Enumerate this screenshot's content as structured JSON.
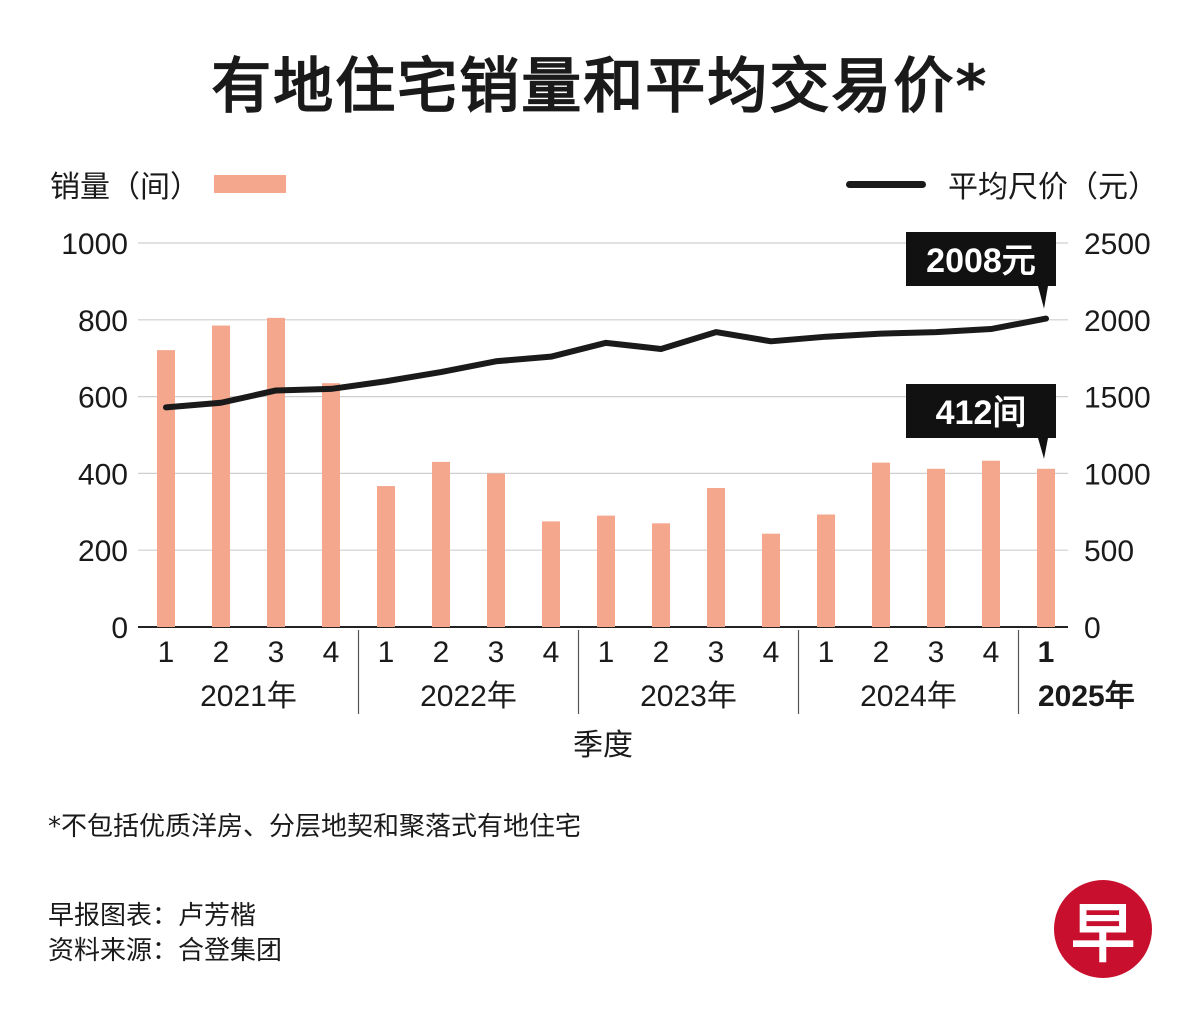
{
  "title": "有地住宅销量和平均交易价*",
  "legend": {
    "bar_label": "销量（间）",
    "line_label": "平均尺价（元）"
  },
  "colors": {
    "bar": "#f4a78c",
    "line": "#1a1a1a",
    "grid": "#cfcfcf",
    "callout_bg": "#111111",
    "logo": "#c8102e"
  },
  "chart_data": {
    "type": "bar",
    "categories": [
      "1",
      "2",
      "3",
      "4",
      "1",
      "2",
      "3",
      "4",
      "1",
      "2",
      "3",
      "4",
      "1",
      "2",
      "3",
      "4",
      "1"
    ],
    "year_groups": [
      {
        "label": "2021年",
        "quarters": 4,
        "bold": false
      },
      {
        "label": "2022年",
        "quarters": 4,
        "bold": false
      },
      {
        "label": "2023年",
        "quarters": 4,
        "bold": false
      },
      {
        "label": "2024年",
        "quarters": 4,
        "bold": false
      },
      {
        "label": "2025年",
        "quarters": 1,
        "bold": true
      }
    ],
    "series": [
      {
        "name": "销量（间）",
        "type": "bar",
        "axis": "left",
        "values": [
          721,
          785,
          805,
          635,
          367,
          430,
          400,
          275,
          290,
          270,
          362,
          243,
          293,
          428,
          412,
          433,
          412
        ]
      },
      {
        "name": "平均尺价（元）",
        "type": "line",
        "axis": "right",
        "values": [
          1430,
          1460,
          1540,
          1550,
          1600,
          1660,
          1730,
          1760,
          1850,
          1810,
          1920,
          1860,
          1890,
          1910,
          1920,
          1940,
          2008
        ]
      }
    ],
    "y_left": {
      "min": 0,
      "max": 1000,
      "ticks": [
        0,
        200,
        400,
        600,
        800,
        1000
      ]
    },
    "y_right": {
      "min": 0,
      "max": 2500,
      "ticks": [
        0,
        500,
        1000,
        1500,
        2000,
        2500
      ]
    },
    "xlabel": "季度",
    "annotations": [
      {
        "text": "2008元",
        "series": "平均尺价（元）",
        "index": 16
      },
      {
        "text": "412间",
        "series": "销量（间）",
        "index": 16
      }
    ]
  },
  "footnote": "*不包括优质洋房、分层地契和聚落式有地住宅",
  "credits": {
    "chart_by": "早报图表：卢芳楷",
    "source": "资料来源：合登集团"
  },
  "logo_text": "早"
}
